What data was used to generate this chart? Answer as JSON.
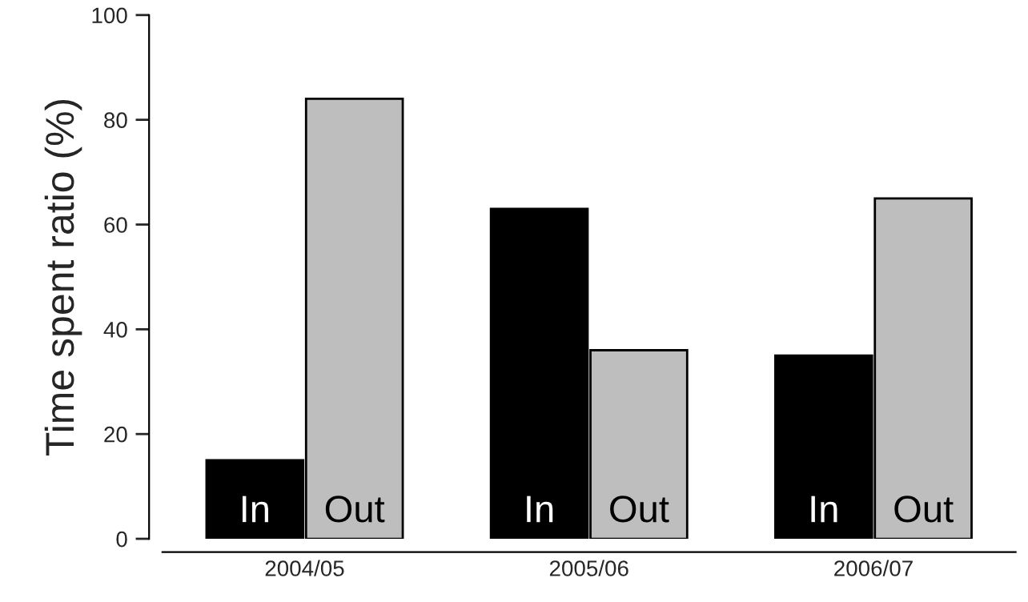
{
  "chart_data": {
    "type": "bar",
    "ylabel": "Time spent ratio (%)",
    "categories": [
      "2004/05",
      "2005/06",
      "2006/07"
    ],
    "series": [
      {
        "name": "In",
        "color": "#000000",
        "values": [
          15,
          63,
          35
        ]
      },
      {
        "name": "Out",
        "color": "#bebebe",
        "values": [
          84,
          36,
          65
        ]
      }
    ],
    "ylim": [
      0,
      100
    ],
    "yticks": [
      0,
      20,
      40,
      60,
      80,
      100
    ],
    "legend": false,
    "grid": false
  }
}
